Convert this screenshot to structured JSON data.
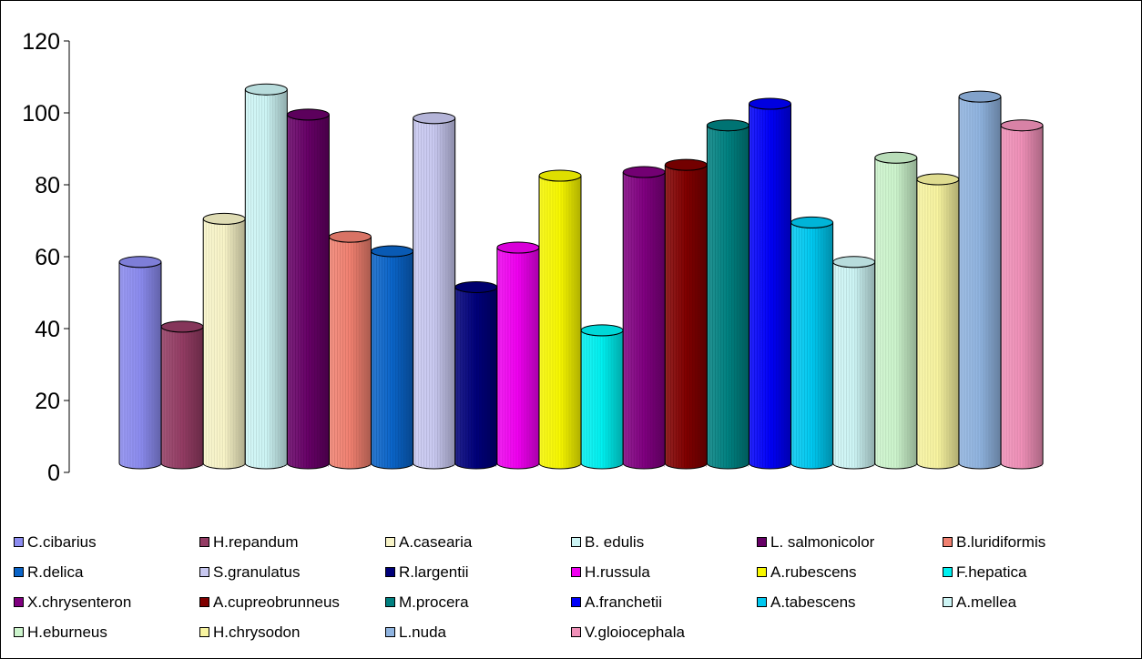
{
  "chart_data": {
    "type": "bar",
    "title": "",
    "xlabel": "",
    "ylabel": "",
    "ylim": [
      0,
      120
    ],
    "yticks": [
      "0",
      "20",
      "40",
      "60",
      "80",
      "100",
      "120"
    ],
    "grid": false,
    "legend_position": "bottom",
    "categories": [
      "C.cibarius",
      "H.repandum",
      "A.casearia",
      "B. edulis",
      "L. salmonicolor",
      "B.luridiformis",
      "R.delica",
      "S.granulatus",
      "R.largentii",
      "H.russula",
      "A.rubescens",
      "F.hepatica",
      "X.chrysenteron",
      "A.cupreobrunneus",
      "M.procera",
      "A.franchetii",
      "A.tabescens",
      "A.mellea",
      "H.eburneus",
      "H.chrysodon",
      "L.nuda",
      "V.gloiocephala"
    ],
    "values": [
      56,
      38,
      68,
      104,
      97,
      63,
      59,
      96,
      49,
      60,
      80,
      37,
      81,
      83,
      94,
      100,
      67,
      56,
      85,
      79,
      102,
      94
    ],
    "colors": [
      "#8c8cf0",
      "#943c64",
      "#f8f4c8",
      "#ccf4f4",
      "#660066",
      "#f08070",
      "#0a64c8",
      "#c8c8f0",
      "#00007a",
      "#f000f0",
      "#f8f800",
      "#00f0f0",
      "#800080",
      "#800000",
      "#008080",
      "#0000f8",
      "#00c8f0",
      "#ccf4f4",
      "#ccf4cc",
      "#f8f4a0",
      "#90b4e0",
      "#f090b8"
    ]
  }
}
